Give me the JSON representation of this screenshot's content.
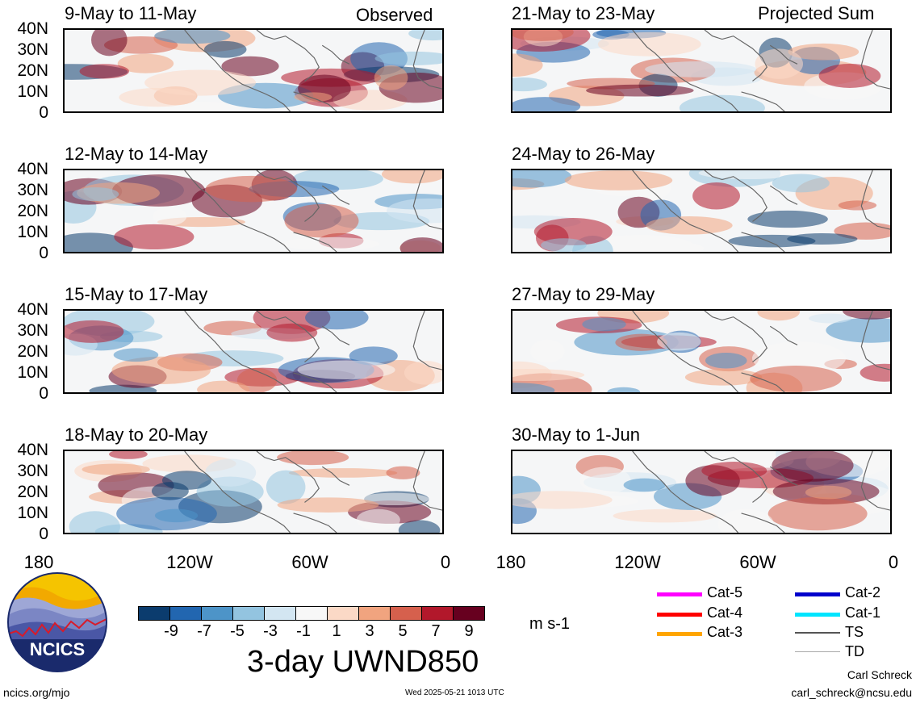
{
  "panels": [
    {
      "title": "9-May to 11-May",
      "tag": "Observed"
    },
    {
      "title": "21-May to 23-May",
      "tag": "Projected Sum"
    },
    {
      "title": "12-May to 14-May",
      "tag": ""
    },
    {
      "title": "24-May to 26-May",
      "tag": ""
    },
    {
      "title": "15-May to 17-May",
      "tag": ""
    },
    {
      "title": "27-May to 29-May",
      "tag": ""
    },
    {
      "title": "18-May to 20-May",
      "tag": ""
    },
    {
      "title": "30-May to 1-Jun",
      "tag": ""
    }
  ],
  "lat_labels": [
    "40N",
    "30N",
    "20N",
    "10N",
    "0"
  ],
  "lon_labels": [
    "180",
    "120W",
    "60W",
    "0"
  ],
  "colorbar": {
    "colors": [
      "#0b3c6e",
      "#2266b0",
      "#4d94c8",
      "#93c4e0",
      "#d3e6f2",
      "#f7f7f7",
      "#fbd9c6",
      "#f1a47f",
      "#d6604d",
      "#b2182b",
      "#67001f"
    ],
    "labels": [
      "-9",
      "-7",
      "-5",
      "-3",
      "-1",
      "1",
      "3",
      "5",
      "7",
      "9"
    ],
    "units": "m s-1",
    "title": "3-day UWND850"
  },
  "storm_legend": [
    {
      "label": "Cat-5",
      "color": "#ff00ff"
    },
    {
      "label": "Cat-4",
      "color": "#ff0000"
    },
    {
      "label": "Cat-3",
      "color": "#ffa500"
    },
    {
      "label": "Cat-2",
      "color": "#0000cc"
    },
    {
      "label": "Cat-1",
      "color": "#00e5ff"
    },
    {
      "label": "TS",
      "color": "#555555"
    },
    {
      "label": "TD",
      "color": "#aaaaaa"
    }
  ],
  "logo": {
    "text": "NCICS"
  },
  "footer": {
    "url": "ncics.org/mjo",
    "timestamp": "Wed 2025-05-21 1013 UTC",
    "author": "Carl Schreck",
    "email": "carl_schreck@ncsu.edu"
  }
}
